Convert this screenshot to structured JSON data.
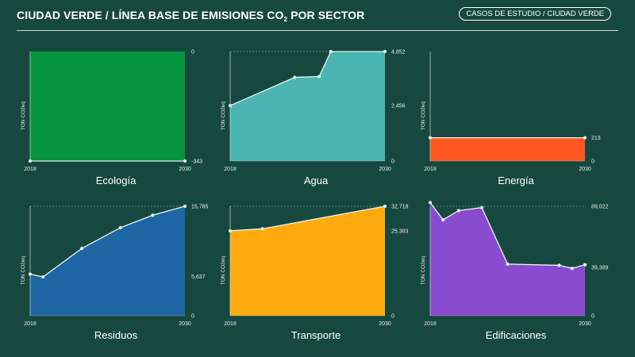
{
  "header": {
    "title_main": "CIUDAD VERDE / LÍNEA BASE DE EMISIONES CO",
    "title_sub": "2",
    "title_tail": " POR SECTOR",
    "badge": "CASOS DE ESTUDIO / CIUDAD VERDE"
  },
  "chart_data": [
    {
      "type": "area",
      "title": "Ecología",
      "color": "#06963e",
      "ylabel": "TON CO2eq",
      "x_start_label": "2018",
      "x_end_label": "2030",
      "ylim": [
        -343,
        0
      ],
      "ytick_labels": [
        "0",
        "-343"
      ],
      "points": [
        [
          2018,
          -343
        ],
        [
          2030,
          -343
        ]
      ]
    },
    {
      "type": "area",
      "title": "Agua",
      "color": "#4bb5b3",
      "ylabel": "TON CO2eq",
      "x_start_label": "2018",
      "x_end_label": "2030",
      "ylim": [
        0,
        4852
      ],
      "ytick_labels": [
        "4,852",
        "2,456",
        "0"
      ],
      "points": [
        [
          2018,
          2456
        ],
        [
          2023,
          3710
        ],
        [
          2024.9,
          3750
        ],
        [
          2025.8,
          4852
        ],
        [
          2030,
          4852
        ]
      ]
    },
    {
      "type": "area",
      "title": "Energía",
      "color": "#ff5722",
      "ylabel": "TON CO2eq",
      "x_start_label": "2018",
      "x_end_label": "2030",
      "ylim": [
        0,
        1000
      ],
      "ytick_labels": [
        "213",
        "0"
      ],
      "points": [
        [
          2018,
          213
        ],
        [
          2030,
          213
        ]
      ]
    },
    {
      "type": "area",
      "title": "Residuos",
      "color": "#1f67a4",
      "ylabel": "TON CO2eq",
      "x_start_label": "2018",
      "x_end_label": "2030",
      "ylim": [
        0,
        15785
      ],
      "ytick_labels": [
        "15,785",
        "5,637",
        "0"
      ],
      "points": [
        [
          2018,
          6000
        ],
        [
          2019,
          5600
        ],
        [
          2022,
          9700
        ],
        [
          2025,
          12700
        ],
        [
          2027.5,
          14500
        ],
        [
          2030,
          15785
        ]
      ]
    },
    {
      "type": "area",
      "title": "Transporte",
      "color": "#ffab0f",
      "ylabel": "TON CO2eq",
      "x_start_label": "2018",
      "x_end_label": "2030",
      "ylim": [
        0,
        32718
      ],
      "ytick_labels": [
        "32,718",
        "25,383",
        "0"
      ],
      "points": [
        [
          2018,
          25383
        ],
        [
          2020.5,
          26000
        ],
        [
          2030,
          32718
        ]
      ]
    },
    {
      "type": "area",
      "title": "Edificaciones",
      "color": "#8a4ccf",
      "ylabel": "TON CO2eq",
      "x_start_label": "2018",
      "x_end_label": "2030",
      "ylim": [
        0,
        89022
      ],
      "ytick_labels": [
        "89,022",
        "39,389",
        "0"
      ],
      "points": [
        [
          2018,
          92000
        ],
        [
          2019,
          78000
        ],
        [
          2020.2,
          85500
        ],
        [
          2022,
          88000
        ],
        [
          2024,
          42000
        ],
        [
          2028,
          41000
        ],
        [
          2029,
          38500
        ],
        [
          2030,
          41500
        ]
      ]
    }
  ]
}
